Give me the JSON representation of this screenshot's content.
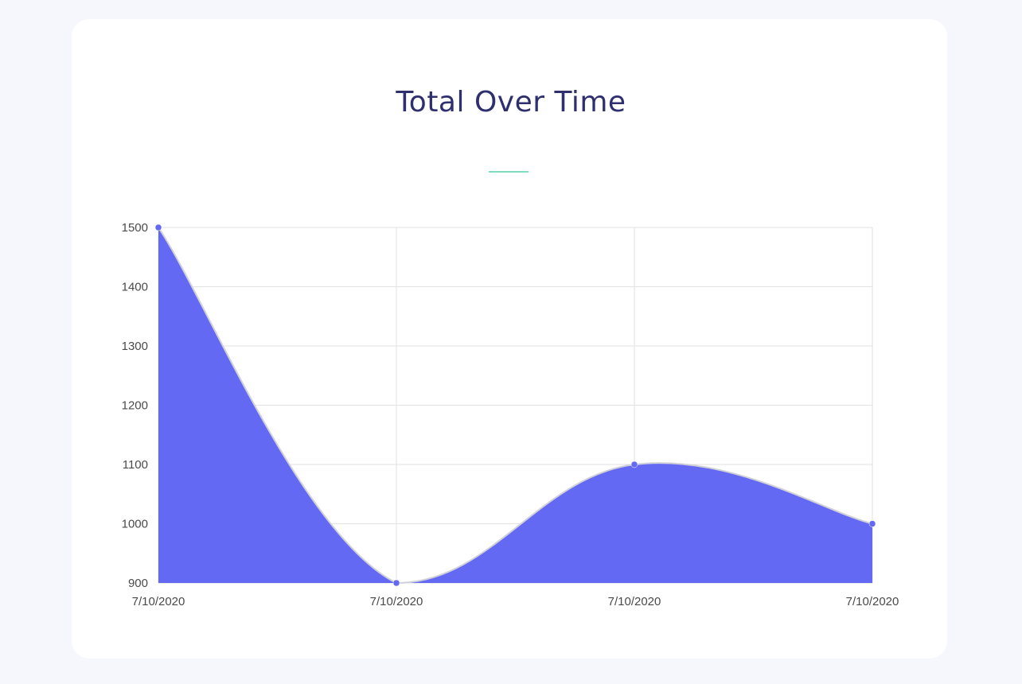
{
  "header": {
    "title": "Total Over Time"
  },
  "chart_data": {
    "type": "area",
    "title": "Total Over Time",
    "x": [
      "7/10/2020",
      "7/10/2020",
      "7/10/2020",
      "7/10/2020"
    ],
    "series": [
      {
        "values": [
          1500,
          900,
          1100,
          1000
        ]
      }
    ],
    "ylim": [
      900,
      1500
    ],
    "yticks": [
      1500,
      1400,
      1300,
      1200,
      1100,
      1000,
      900
    ],
    "grid": true,
    "legend": "none",
    "colors": {
      "fill": "#6469f4",
      "stroke": "#d0d0d8",
      "point": "#6469f4",
      "grid": "#e2e2e2",
      "title": "#2e2f6e",
      "underline": "#7fdcbc"
    }
  }
}
